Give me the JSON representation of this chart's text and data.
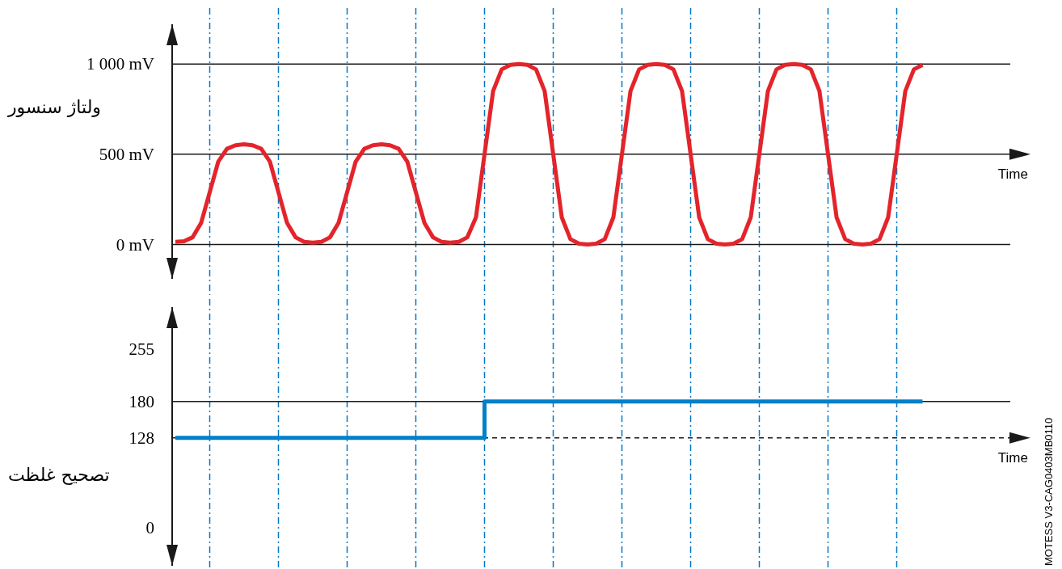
{
  "chart_data": [
    {
      "type": "line",
      "ylabel": "ولتاژ سنسور",
      "xlabel": "Time",
      "tick_labels": "y",
      "categories": [
        null,
        null,
        null,
        null,
        null,
        null,
        null,
        null,
        null,
        null,
        null,
        null,
        null,
        null,
        null,
        null,
        null,
        null,
        null,
        null,
        null,
        null,
        null,
        null,
        null,
        null,
        null,
        null,
        null,
        null,
        null,
        null,
        null,
        null,
        null,
        null,
        null,
        null,
        null,
        null,
        null,
        null,
        null,
        null,
        null,
        null,
        null,
        null,
        null,
        null,
        null,
        null,
        null,
        null,
        null,
        null,
        null,
        null,
        null,
        null,
        null,
        null,
        null,
        null,
        null,
        null,
        null,
        null,
        null,
        null,
        null,
        null,
        null,
        null,
        null,
        null,
        null,
        null,
        null,
        null,
        null,
        null,
        null,
        null,
        null,
        null,
        null,
        null
      ],
      "ylim": [
        -190,
        1220
      ],
      "yticks": [
        {
          "value": 0,
          "label": "0 mV"
        },
        {
          "value": 500,
          "label": "500 mV"
        },
        {
          "value": 1000,
          "label": "1 000 mV"
        }
      ],
      "grid": "x",
      "ref_lines": [
        {
          "axis": "y",
          "value": 500,
          "color": "#1a1a1a"
        },
        {
          "axis": "y",
          "value": 0,
          "color": "#1a1a1a"
        },
        {
          "axis": "y",
          "value": 1000,
          "color": "#1a1a1a"
        }
      ],
      "series": [
        {
          "color": "#e3242b",
          "values": [
            15,
            18,
            40,
            120,
            290,
            460,
            530,
            550,
            555,
            550,
            530,
            460,
            290,
            120,
            40,
            15,
            10,
            15,
            40,
            120,
            290,
            460,
            530,
            550,
            555,
            550,
            530,
            460,
            290,
            120,
            40,
            15,
            10,
            15,
            40,
            150,
            500,
            850,
            970,
            995,
            1000,
            995,
            970,
            850,
            500,
            150,
            30,
            5,
            0,
            5,
            30,
            150,
            500,
            850,
            970,
            995,
            1000,
            995,
            970,
            850,
            500,
            150,
            30,
            5,
            0,
            5,
            30,
            150,
            500,
            850,
            970,
            995,
            1000,
            995,
            970,
            850,
            500,
            150,
            30,
            5,
            0,
            5,
            30,
            150,
            500,
            850,
            970,
            995
          ]
        }
      ]
    },
    {
      "type": "step",
      "ylabel": "تصحیح غلظت",
      "xlabel": "Time",
      "tick_labels": "y",
      "categories": [
        null,
        null,
        null,
        null,
        null,
        null,
        null,
        null,
        null,
        null,
        null,
        null,
        null,
        null,
        null,
        null,
        null,
        null,
        null,
        null,
        null,
        null,
        null,
        null,
        null,
        null,
        null,
        null,
        null,
        null,
        null,
        null,
        null,
        null,
        null,
        null,
        null,
        null,
        null,
        null,
        null,
        null,
        null,
        null,
        null,
        null,
        null,
        null,
        null,
        null,
        null,
        null,
        null,
        null,
        null,
        null,
        null,
        null,
        null,
        null,
        null,
        null,
        null,
        null,
        null,
        null,
        null,
        null,
        null,
        null,
        null,
        null,
        null,
        null,
        null,
        null,
        null,
        null,
        null,
        null,
        null,
        null,
        null,
        null,
        null,
        null,
        null,
        null
      ],
      "ylim": [
        -55,
        315
      ],
      "yticks": [
        0,
        128,
        180,
        255
      ],
      "grid": "x",
      "ref_lines": [
        {
          "axis": "y",
          "value": 128,
          "color": "#1a1a1a",
          "line_style": "dashed"
        },
        {
          "axis": "y",
          "value": 180,
          "color": "#1a1a1a"
        }
      ],
      "series": [
        {
          "color": "#0080c8",
          "values": [
            128,
            128,
            128,
            128,
            128,
            128,
            128,
            128,
            128,
            128,
            128,
            128,
            128,
            128,
            128,
            128,
            128,
            128,
            128,
            128,
            128,
            128,
            128,
            128,
            128,
            128,
            128,
            128,
            128,
            128,
            128,
            128,
            128,
            128,
            128,
            128,
            180,
            180,
            180,
            180,
            180,
            180,
            180,
            180,
            180,
            180,
            180,
            180,
            180,
            180,
            180,
            180,
            180,
            180,
            180,
            180,
            180,
            180,
            180,
            180,
            180,
            180,
            180,
            180,
            180,
            180,
            180,
            180,
            180,
            180,
            180,
            180,
            180,
            180,
            180,
            180,
            180,
            180,
            180,
            180,
            180,
            180,
            180,
            180,
            180,
            180,
            180,
            180
          ]
        }
      ],
      "annotations": [
        "MOTESS V3-CAG0403MB0110"
      ]
    }
  ]
}
